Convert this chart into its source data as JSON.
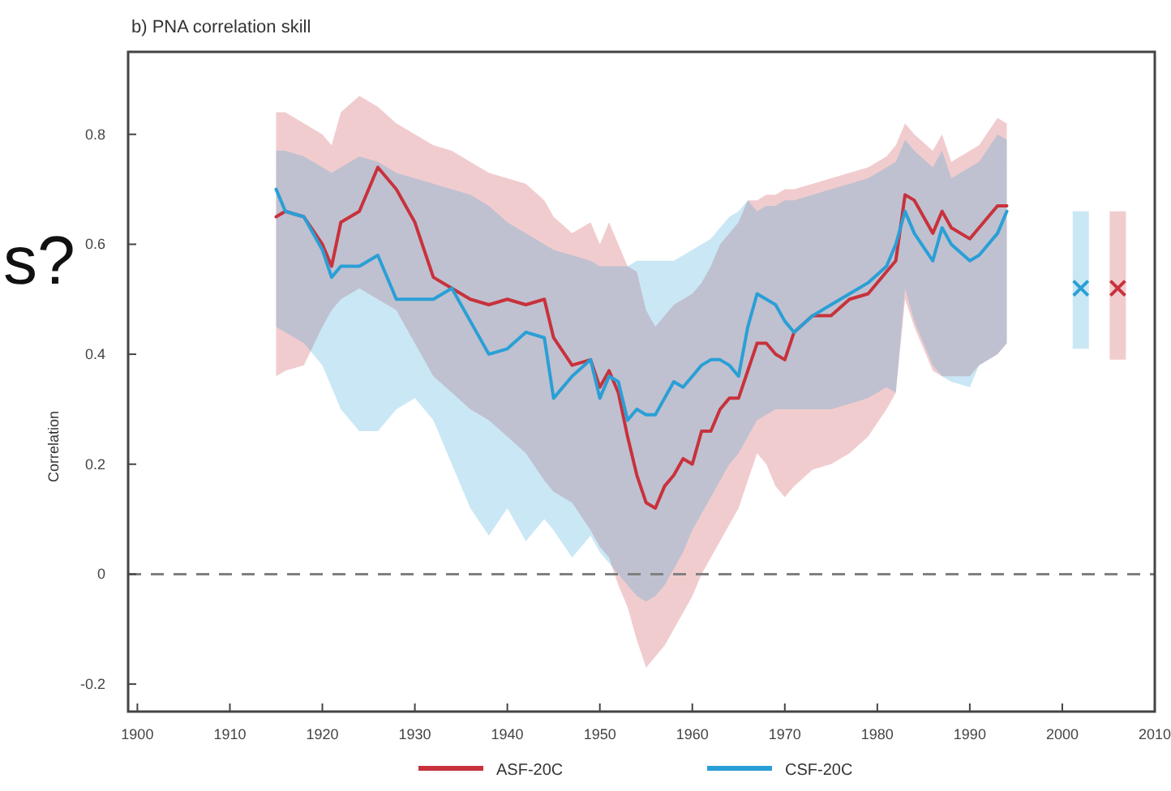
{
  "chart_data": {
    "type": "line",
    "title": "b) PNA correlation skill",
    "ylabel": "Correlation",
    "annotations": [
      "s?"
    ],
    "xlim": [
      1899,
      2010
    ],
    "xticks": [
      1900,
      1910,
      1920,
      1930,
      1940,
      1950,
      1960,
      1970,
      1980,
      1990,
      2000,
      2010
    ],
    "ylim": [
      -0.25,
      0.95
    ],
    "yticks": [
      -0.2,
      0,
      0.2,
      0.4,
      0.6,
      0.8
    ],
    "grid": false,
    "legend": "bottom",
    "line_style": "solid",
    "ref_lines": [
      {
        "axis": "y",
        "value": 0,
        "color": "#808080",
        "line_style": "dashed"
      }
    ],
    "series": [
      {
        "name": "ASF-20C",
        "color": "#c8323c",
        "type": "line",
        "x": [
          1915,
          1916,
          1918,
          1920,
          1921,
          1922,
          1924,
          1926,
          1928,
          1930,
          1932,
          1934,
          1936,
          1938,
          1940,
          1942,
          1944,
          1945,
          1947,
          1949,
          1950,
          1951,
          1952,
          1953,
          1954,
          1955,
          1956,
          1957,
          1958,
          1959,
          1960,
          1961,
          1962,
          1963,
          1964,
          1965,
          1966,
          1967,
          1968,
          1969,
          1970,
          1971,
          1973,
          1975,
          1977,
          1979,
          1981,
          1982,
          1983,
          1984,
          1986,
          1987,
          1988,
          1990,
          1991,
          1993,
          1994
        ],
        "values": [
          0.65,
          0.66,
          0.65,
          0.6,
          0.56,
          0.64,
          0.66,
          0.74,
          0.7,
          0.64,
          0.54,
          0.52,
          0.5,
          0.49,
          0.5,
          0.49,
          0.5,
          0.43,
          0.38,
          0.39,
          0.34,
          0.37,
          0.33,
          0.25,
          0.18,
          0.13,
          0.12,
          0.16,
          0.18,
          0.21,
          0.2,
          0.26,
          0.26,
          0.3,
          0.32,
          0.32,
          0.37,
          0.42,
          0.42,
          0.4,
          0.39,
          0.44,
          0.47,
          0.47,
          0.5,
          0.51,
          0.55,
          0.57,
          0.69,
          0.68,
          0.62,
          0.66,
          0.63,
          0.61,
          0.63,
          0.67,
          0.67
        ],
        "upper": [
          0.84,
          0.84,
          0.82,
          0.8,
          0.78,
          0.84,
          0.87,
          0.85,
          0.82,
          0.8,
          0.78,
          0.77,
          0.75,
          0.73,
          0.72,
          0.71,
          0.68,
          0.65,
          0.62,
          0.64,
          0.6,
          0.64,
          0.6,
          0.56,
          0.55,
          0.48,
          0.45,
          0.47,
          0.49,
          0.5,
          0.51,
          0.53,
          0.56,
          0.6,
          0.62,
          0.64,
          0.68,
          0.68,
          0.69,
          0.69,
          0.7,
          0.7,
          0.71,
          0.72,
          0.73,
          0.74,
          0.76,
          0.78,
          0.82,
          0.8,
          0.77,
          0.8,
          0.75,
          0.77,
          0.78,
          0.83,
          0.82
        ],
        "lower": [
          0.36,
          0.37,
          0.38,
          0.45,
          0.48,
          0.5,
          0.52,
          0.5,
          0.48,
          0.42,
          0.36,
          0.33,
          0.3,
          0.28,
          0.25,
          0.22,
          0.17,
          0.15,
          0.13,
          0.08,
          0.05,
          0.03,
          -0.02,
          -0.06,
          -0.12,
          -0.17,
          -0.15,
          -0.13,
          -0.1,
          -0.07,
          -0.04,
          0.0,
          0.03,
          0.06,
          0.09,
          0.12,
          0.17,
          0.22,
          0.2,
          0.16,
          0.14,
          0.16,
          0.19,
          0.2,
          0.22,
          0.25,
          0.3,
          0.33,
          0.5,
          0.45,
          0.37,
          0.36,
          0.36,
          0.36,
          0.38,
          0.4,
          0.42
        ]
      },
      {
        "name": "CSF-20C",
        "color": "#2a9fd6",
        "type": "line",
        "x": [
          1915,
          1916,
          1918,
          1920,
          1921,
          1922,
          1924,
          1926,
          1928,
          1930,
          1932,
          1934,
          1936,
          1938,
          1940,
          1942,
          1944,
          1945,
          1947,
          1949,
          1950,
          1951,
          1952,
          1953,
          1954,
          1955,
          1956,
          1957,
          1958,
          1959,
          1960,
          1961,
          1962,
          1963,
          1964,
          1965,
          1966,
          1967,
          1968,
          1969,
          1970,
          1971,
          1973,
          1975,
          1977,
          1979,
          1981,
          1982,
          1983,
          1984,
          1986,
          1987,
          1988,
          1990,
          1991,
          1993,
          1994
        ],
        "values": [
          0.7,
          0.66,
          0.65,
          0.59,
          0.54,
          0.56,
          0.56,
          0.58,
          0.5,
          0.5,
          0.5,
          0.52,
          0.46,
          0.4,
          0.41,
          0.44,
          0.43,
          0.32,
          0.36,
          0.39,
          0.32,
          0.36,
          0.35,
          0.28,
          0.3,
          0.29,
          0.29,
          0.32,
          0.35,
          0.34,
          0.36,
          0.38,
          0.39,
          0.39,
          0.38,
          0.36,
          0.45,
          0.51,
          0.5,
          0.49,
          0.46,
          0.44,
          0.47,
          0.49,
          0.51,
          0.53,
          0.56,
          0.6,
          0.66,
          0.62,
          0.57,
          0.63,
          0.6,
          0.57,
          0.58,
          0.62,
          0.66
        ],
        "upper": [
          0.77,
          0.77,
          0.76,
          0.74,
          0.73,
          0.74,
          0.76,
          0.75,
          0.73,
          0.72,
          0.71,
          0.7,
          0.69,
          0.67,
          0.64,
          0.62,
          0.6,
          0.59,
          0.58,
          0.57,
          0.56,
          0.56,
          0.56,
          0.56,
          0.57,
          0.57,
          0.57,
          0.57,
          0.57,
          0.58,
          0.59,
          0.6,
          0.61,
          0.63,
          0.65,
          0.66,
          0.68,
          0.66,
          0.67,
          0.67,
          0.68,
          0.68,
          0.69,
          0.7,
          0.71,
          0.72,
          0.74,
          0.75,
          0.79,
          0.77,
          0.74,
          0.77,
          0.72,
          0.74,
          0.75,
          0.8,
          0.79
        ],
        "lower": [
          0.45,
          0.44,
          0.42,
          0.38,
          0.34,
          0.3,
          0.26,
          0.26,
          0.3,
          0.32,
          0.28,
          0.2,
          0.12,
          0.07,
          0.12,
          0.06,
          0.1,
          0.08,
          0.03,
          0.07,
          0.04,
          0.02,
          0.0,
          -0.02,
          -0.04,
          -0.05,
          -0.04,
          -0.02,
          0.01,
          0.04,
          0.08,
          0.11,
          0.14,
          0.17,
          0.2,
          0.22,
          0.25,
          0.28,
          0.29,
          0.3,
          0.3,
          0.3,
          0.3,
          0.3,
          0.31,
          0.32,
          0.34,
          0.33,
          0.52,
          0.46,
          0.38,
          0.36,
          0.35,
          0.34,
          0.38,
          0.4,
          0.42
        ]
      },
      {
        "type": "scatter",
        "color": "#2a9fd6",
        "marker": "cross",
        "x": [
          2002
        ],
        "values": [
          0.52
        ],
        "errors": [
          [
            0.41,
            0.66
          ]
        ]
      },
      {
        "type": "scatter",
        "color": "#c8323c",
        "marker": "cross",
        "x": [
          2006
        ],
        "values": [
          0.52
        ],
        "errors": [
          [
            0.39,
            0.66
          ]
        ]
      }
    ]
  }
}
